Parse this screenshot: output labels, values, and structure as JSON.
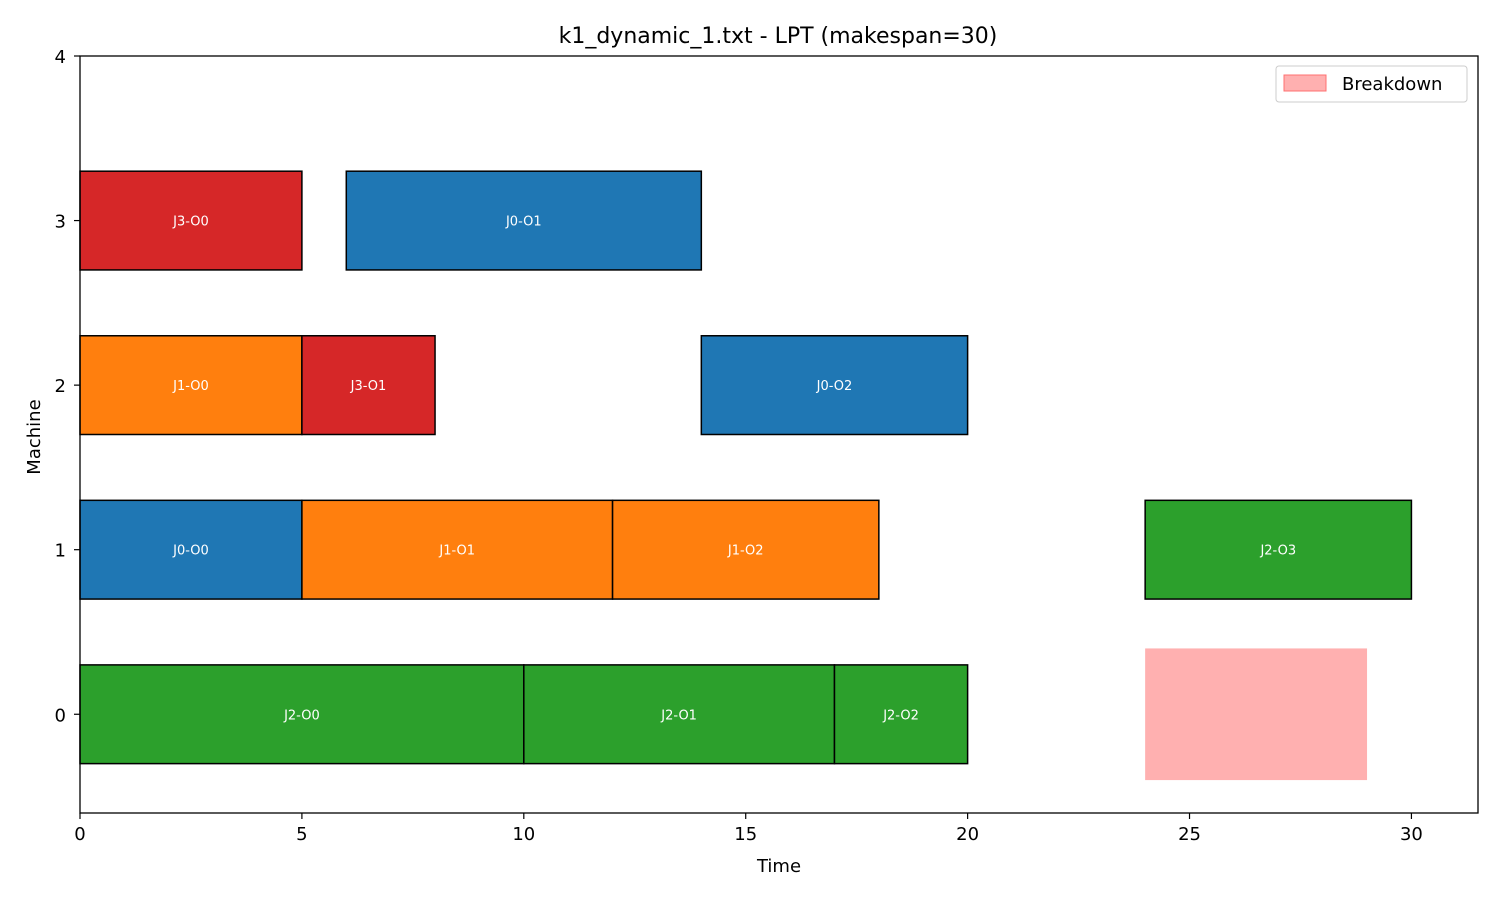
{
  "chart_data": {
    "type": "gantt",
    "title": "k1_dynamic_1.txt - LPT (makespan=30)",
    "xlabel": "Time",
    "ylabel": "Machine",
    "xlim": [
      0,
      31.5
    ],
    "ylim": [
      -0.6,
      4
    ],
    "x_ticks": [
      0,
      5,
      10,
      15,
      20,
      25,
      30
    ],
    "y_ticks": [
      0,
      1,
      2,
      3,
      4
    ],
    "grid": false,
    "legend_position": "top-right",
    "legend": [
      {
        "label": "Breakdown",
        "color": "#ffb0b0"
      }
    ],
    "job_colors": {
      "J0": "#1f77b4",
      "J1": "#ff7f0e",
      "J2": "#2ca02c",
      "J3": "#d62728"
    },
    "operations": [
      {
        "label": "J2-O0",
        "job": "J2",
        "machine": 0,
        "start": 0,
        "end": 10
      },
      {
        "label": "J2-O1",
        "job": "J2",
        "machine": 0,
        "start": 10,
        "end": 17
      },
      {
        "label": "J2-O2",
        "job": "J2",
        "machine": 0,
        "start": 17,
        "end": 20
      },
      {
        "label": "J0-O0",
        "job": "J0",
        "machine": 1,
        "start": 0,
        "end": 5
      },
      {
        "label": "J1-O1",
        "job": "J1",
        "machine": 1,
        "start": 5,
        "end": 12
      },
      {
        "label": "J1-O2",
        "job": "J1",
        "machine": 1,
        "start": 12,
        "end": 18
      },
      {
        "label": "J2-O3",
        "job": "J2",
        "machine": 1,
        "start": 24,
        "end": 30
      },
      {
        "label": "J1-O0",
        "job": "J1",
        "machine": 2,
        "start": 0,
        "end": 5
      },
      {
        "label": "J3-O1",
        "job": "J3",
        "machine": 2,
        "start": 5,
        "end": 8
      },
      {
        "label": "J0-O2",
        "job": "J0",
        "machine": 2,
        "start": 14,
        "end": 20
      },
      {
        "label": "J3-O0",
        "job": "J3",
        "machine": 3,
        "start": 0,
        "end": 5
      },
      {
        "label": "J0-O1",
        "job": "J0",
        "machine": 3,
        "start": 6,
        "end": 14
      }
    ],
    "breakdowns": [
      {
        "machine": 0,
        "start": 24,
        "end": 29
      }
    ]
  }
}
